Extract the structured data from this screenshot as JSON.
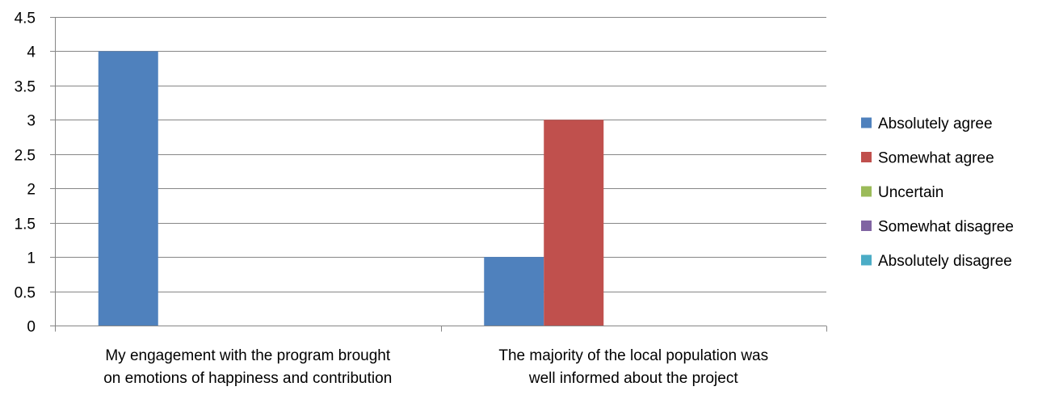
{
  "chart_data": {
    "type": "bar",
    "categories": [
      [
        "My engagement with the program brought",
        "on emotions of happiness and contribution"
      ],
      [
        "The majority of the local population was",
        "well informed about the project"
      ]
    ],
    "series": [
      {
        "name": "Absolutely agree",
        "color": "#4F81BD",
        "values": [
          4,
          1
        ]
      },
      {
        "name": "Somewhat agree",
        "color": "#C0504D",
        "values": [
          0,
          3
        ]
      },
      {
        "name": "Uncertain",
        "color": "#9BBB59",
        "values": [
          0,
          0
        ]
      },
      {
        "name": "Somewhat disagree",
        "color": "#8064A2",
        "values": [
          0,
          0
        ]
      },
      {
        "name": "Absolutely disagree",
        "color": "#4BACC6",
        "values": [
          0,
          0
        ]
      }
    ],
    "ylim": [
      0,
      4.5
    ],
    "yticks": [
      "0",
      "0.5",
      "1",
      "1.5",
      "2",
      "2.5",
      "3",
      "3.5",
      "4",
      "4.5"
    ],
    "grid": true,
    "legend_position": "right",
    "gridline_color": "#868686",
    "axis_color": "#868686"
  }
}
